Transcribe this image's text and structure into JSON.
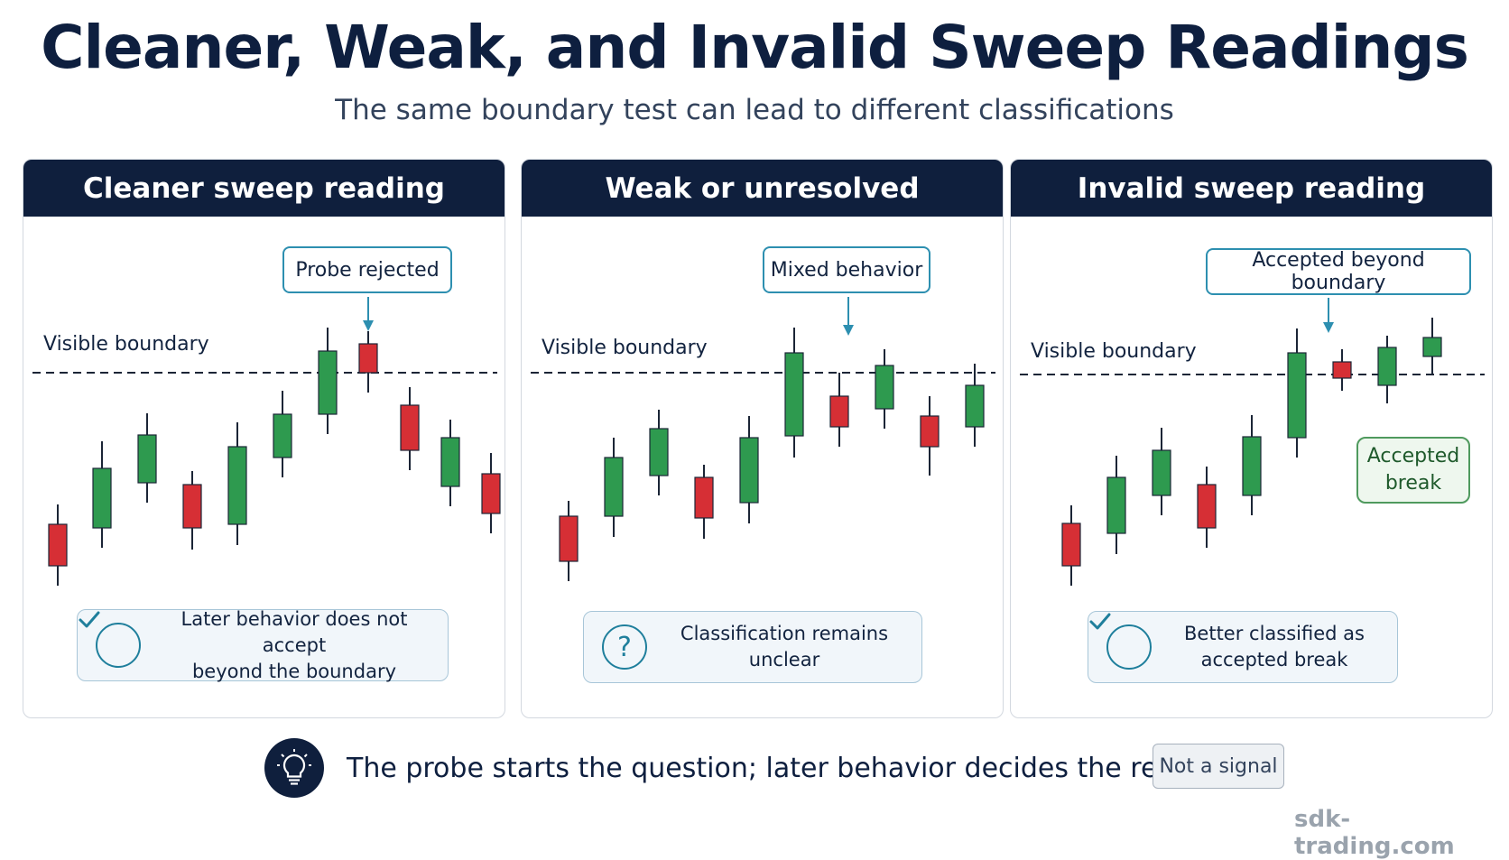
{
  "header": {
    "title": "Cleaner, Weak, and Invalid Sweep Readings",
    "subtitle": "The same boundary test can lead to different classifications"
  },
  "colors": {
    "navy": "#0f1f3d",
    "bull": "#2e9a4f",
    "bear": "#d62f35",
    "accent": "#2d8fb0"
  },
  "panels": [
    {
      "title": "Cleaner sweep reading",
      "callout": "Probe rejected",
      "boundary_label": "Visible boundary",
      "result_icon": "check-circle-icon",
      "result_text_line1": "Later behavior does not accept",
      "result_text_line2": "beyond the boundary"
    },
    {
      "title": "Weak or unresolved",
      "callout": "Mixed behavior",
      "boundary_label": "Visible boundary",
      "result_icon": "question-circle-icon",
      "result_text_line1": "Classification remains unclear",
      "result_text_line2": ""
    },
    {
      "title": "Invalid sweep reading",
      "callout": "Accepted beyond boundary",
      "boundary_label": "Visible boundary",
      "badge_line1": "Accepted",
      "badge_line2": "break",
      "result_icon": "check-circle-icon",
      "result_text_line1": "Better classified as",
      "result_text_line2": "accepted break"
    }
  ],
  "footer": {
    "icon": "lightbulb-icon",
    "text": "The probe starts the question; later behavior decides the reading.",
    "tag": "Not a signal",
    "watermark": "sdk-trading.com"
  }
}
